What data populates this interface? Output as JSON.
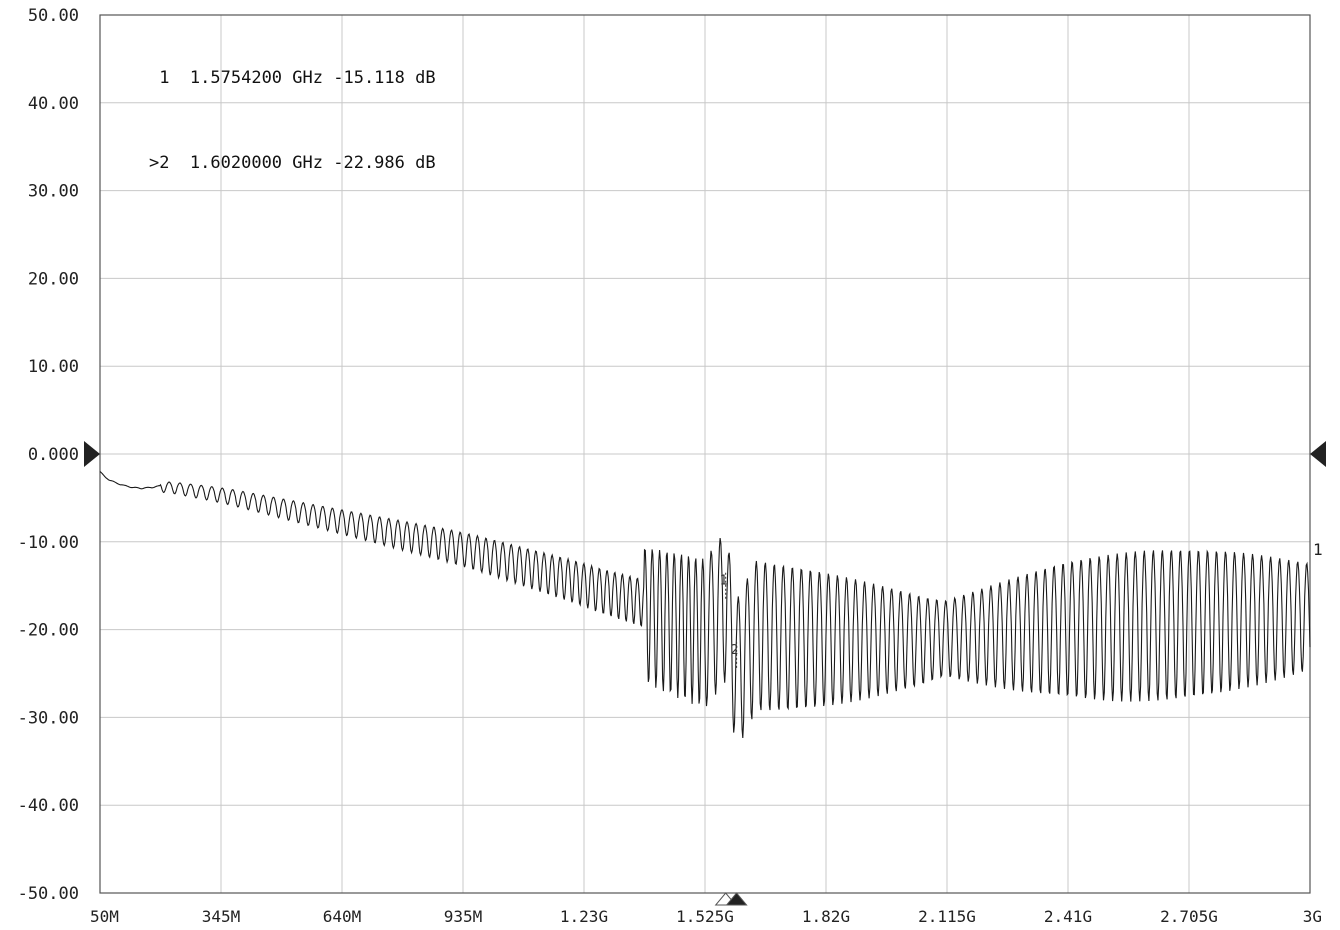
{
  "chart_data": {
    "type": "line",
    "title": "",
    "xlabel": "",
    "ylabel": "",
    "x_unit": "Hz",
    "y_unit": "dB",
    "xlim": [
      50000000,
      3000000000
    ],
    "ylim": [
      -50,
      50
    ],
    "grid": true,
    "x_ticks": [
      {
        "value": 50000000,
        "label": "50M"
      },
      {
        "value": 345000000,
        "label": "345M"
      },
      {
        "value": 640000000,
        "label": "640M"
      },
      {
        "value": 935000000,
        "label": "935M"
      },
      {
        "value": 1230000000,
        "label": "1.23G"
      },
      {
        "value": 1525000000,
        "label": "1.525G"
      },
      {
        "value": 1820000000,
        "label": "1.82G"
      },
      {
        "value": 2115000000,
        "label": "2.115G"
      },
      {
        "value": 2410000000,
        "label": "2.41G"
      },
      {
        "value": 2705000000,
        "label": "2.705G"
      },
      {
        "value": 3000000000,
        "label": "3G"
      }
    ],
    "y_ticks": [
      {
        "value": 50,
        "label": "50.00"
      },
      {
        "value": 40,
        "label": "40.00"
      },
      {
        "value": 30,
        "label": "30.00"
      },
      {
        "value": 20,
        "label": "20.00"
      },
      {
        "value": 10,
        "label": "10.00"
      },
      {
        "value": 0,
        "label": "0.000"
      },
      {
        "value": -10,
        "label": "-10.00"
      },
      {
        "value": -20,
        "label": "-20.00"
      },
      {
        "value": -30,
        "label": "-30.00"
      },
      {
        "value": -40,
        "label": "-40.00"
      },
      {
        "value": -50,
        "label": "-50.00"
      }
    ],
    "reference_level": 0,
    "trace_end_label": "1",
    "trace_color": "#1a1a1a",
    "grid_color": "#c8c8c8",
    "markers": [
      {
        "id": "1",
        "active": false,
        "prefix": " 1",
        "freq_label": "1.5754200 GHz",
        "value_label": "-15.118 dB",
        "freq_hz": 1575420000,
        "value_db": -15.118
      },
      {
        "id": "2",
        "active": true,
        "prefix": ">2",
        "freq_label": "1.6020000 GHz",
        "value_label": "-22.986 dB",
        "freq_hz": 1602000000,
        "value_db": -22.986
      }
    ],
    "series": [
      {
        "points": [
          [
            50000000,
            -2.0
          ],
          [
            62000000,
            -2.6
          ],
          [
            75000000,
            -3.0
          ],
          [
            90000000,
            -3.3
          ],
          [
            110000000,
            -3.6
          ],
          [
            130000000,
            -3.8
          ],
          [
            150000000,
            -3.9
          ],
          [
            175000000,
            -3.8
          ],
          [
            200000000,
            -3.6
          ],
          [
            230000000,
            -3.7
          ],
          [
            260000000,
            -3.9
          ],
          [
            290000000,
            -4.1
          ],
          [
            320000000,
            -4.3
          ],
          [
            345000000,
            -4.5
          ],
          [
            370000000,
            -4.7
          ],
          [
            400000000,
            -5.0
          ],
          [
            430000000,
            -5.3
          ],
          [
            460000000,
            -5.6
          ],
          [
            490000000,
            -5.9
          ],
          [
            520000000,
            -6.2
          ],
          [
            550000000,
            -6.5
          ],
          [
            580000000,
            -6.8
          ],
          [
            610000000,
            -7.1
          ],
          [
            640000000,
            -7.4
          ],
          [
            670000000,
            -7.7
          ],
          [
            700000000,
            -8.0
          ],
          [
            730000000,
            -8.3
          ],
          [
            760000000,
            -8.6
          ],
          [
            790000000,
            -8.9
          ],
          [
            820000000,
            -9.2
          ],
          [
            850000000,
            -9.5
          ],
          [
            880000000,
            -9.8
          ],
          [
            910000000,
            -10.1
          ],
          [
            935000000,
            -10.4
          ],
          [
            970000000,
            -10.8
          ],
          [
            1000000000,
            -11.2
          ],
          [
            1030000000,
            -11.6
          ],
          [
            1060000000,
            -12.0
          ],
          [
            1090000000,
            -12.4
          ],
          [
            1120000000,
            -12.8
          ],
          [
            1150000000,
            -13.2
          ],
          [
            1180000000,
            -13.6
          ],
          [
            1210000000,
            -14.0
          ],
          [
            1230000000,
            -14.3
          ],
          [
            1260000000,
            -14.8
          ],
          [
            1290000000,
            -15.2
          ],
          [
            1320000000,
            -15.6
          ],
          [
            1350000000,
            -16.0
          ],
          [
            1380000000,
            -16.4
          ],
          [
            1410000000,
            -16.8
          ],
          [
            1440000000,
            -17.2
          ],
          [
            1470000000,
            -17.6
          ],
          [
            1500000000,
            -18.0
          ],
          [
            1525000000,
            -18.3
          ],
          [
            1575420000,
            -15.1
          ],
          [
            1602000000,
            -23.0
          ],
          [
            1650000000,
            -18.5
          ],
          [
            1700000000,
            -18.8
          ],
          [
            1760000000,
            -19.0
          ],
          [
            1820000000,
            -19.2
          ],
          [
            1880000000,
            -19.4
          ],
          [
            1940000000,
            -19.6
          ],
          [
            2000000000,
            -19.8
          ],
          [
            2060000000,
            -20.0
          ],
          [
            2115000000,
            -19.9
          ],
          [
            2170000000,
            -19.6
          ],
          [
            2230000000,
            -19.2
          ],
          [
            2290000000,
            -18.8
          ],
          [
            2350000000,
            -18.4
          ],
          [
            2410000000,
            -18.0
          ],
          [
            2470000000,
            -17.8
          ],
          [
            2530000000,
            -17.6
          ],
          [
            2590000000,
            -17.4
          ],
          [
            2650000000,
            -17.3
          ],
          [
            2705000000,
            -17.2
          ],
          [
            2770000000,
            -17.1
          ],
          [
            2830000000,
            -17.0
          ],
          [
            2890000000,
            -17.0
          ],
          [
            2950000000,
            -17.0
          ],
          [
            3000000000,
            -17.0
          ]
        ]
      }
    ]
  }
}
